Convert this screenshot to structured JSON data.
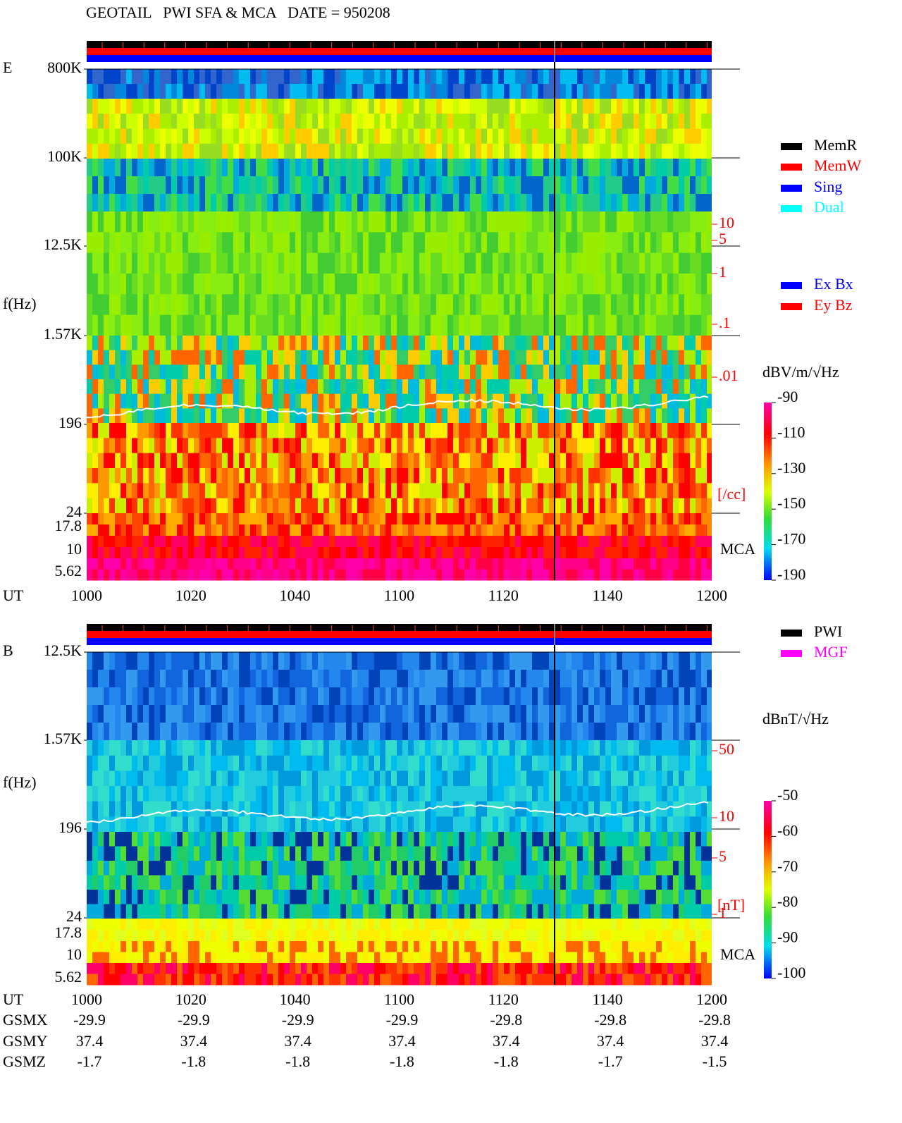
{
  "title": "GEOTAIL   PWI SFA & MCA   DATE = 950208",
  "panels": [
    {
      "label": "E",
      "y_axis_label": "f(Hz)",
      "y_ticks": [
        "800K",
        "100K",
        "12.5K",
        "1.57K",
        "196",
        "24",
        "17.8",
        "10",
        "5.62"
      ],
      "right_ticks": [
        "10",
        "5",
        "1",
        ".1",
        ".01"
      ],
      "right_unit": "[/cc]",
      "mca_label": "MCA",
      "x_label": "UT",
      "x_ticks": [
        "1000",
        "1020",
        "1040",
        "1100",
        "1120",
        "1140",
        "1200"
      ],
      "colorbar": {
        "title": "dBV/m/√Hz",
        "ticks": [
          "-90",
          "-110",
          "-130",
          "-150",
          "-170",
          "-190"
        ]
      }
    },
    {
      "label": "B",
      "y_axis_label": "f(Hz)",
      "y_ticks": [
        "12.5K",
        "1.57K",
        "196",
        "24",
        "17.8",
        "10",
        "5.62"
      ],
      "right_ticks": [
        "50",
        "10",
        "5",
        "1"
      ],
      "right_unit": "[nT]",
      "mca_label": "MCA",
      "x_label": "UT",
      "x_ticks": [
        "1000",
        "1020",
        "1040",
        "1100",
        "1120",
        "1140",
        "1200"
      ],
      "colorbar": {
        "title": "dBnT/√Hz",
        "ticks": [
          "-50",
          "-60",
          "-70",
          "-80",
          "-90",
          "-100"
        ]
      }
    }
  ],
  "legend_mode": [
    {
      "label": "MemR",
      "color": "#000000"
    },
    {
      "label": "MemW",
      "color": "#ff0000"
    },
    {
      "label": "Sing",
      "color": "#0000ff"
    },
    {
      "label": "Dual",
      "color": "#00ffff"
    }
  ],
  "legend_antenna": [
    {
      "label": "Ex Bx",
      "color": "#0000ff"
    },
    {
      "label": "Ey Bz",
      "color": "#ff0000"
    }
  ],
  "legend_source": [
    {
      "label": "PWI",
      "color": "#000000"
    },
    {
      "label": "MGF",
      "color": "#ff00ff"
    }
  ],
  "orbit": [
    {
      "label": "GSMX",
      "values": [
        "-29.9",
        "-29.9",
        "-29.9",
        "-29.9",
        "-29.8",
        "-29.8",
        "-29.8"
      ]
    },
    {
      "label": "GSMY",
      "values": [
        "37.4",
        "37.4",
        "37.4",
        "37.4",
        "37.4",
        "37.4",
        "37.4"
      ]
    },
    {
      "label": "GSMZ",
      "values": [
        "-1.7",
        "-1.8",
        "-1.8",
        "-1.8",
        "-1.8",
        "-1.7",
        "-1.5"
      ]
    }
  ]
}
